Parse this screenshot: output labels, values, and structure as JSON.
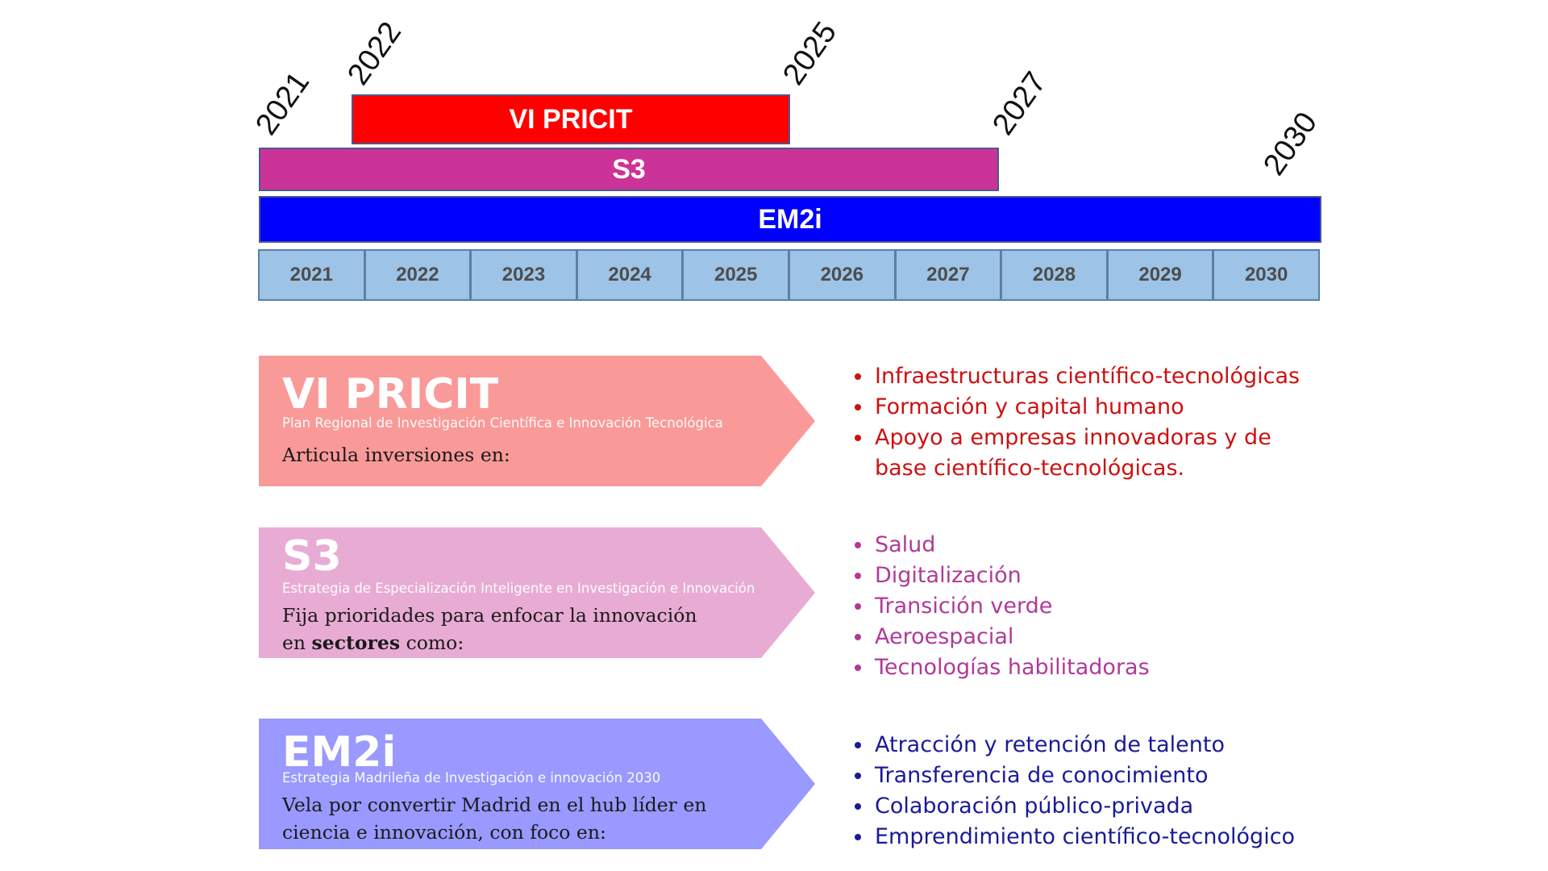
{
  "timeline": {
    "bars": {
      "pricit": "VI PRICIT",
      "s3": "S3",
      "em2i": "EM2i"
    },
    "tick_labels": {
      "start_2021": "2021",
      "start_2022": "2022",
      "end_2025": "2025",
      "end_2027": "2027",
      "end_2030": "2030"
    },
    "years": [
      "2021",
      "2022",
      "2023",
      "2024",
      "2025",
      "2026",
      "2027",
      "2028",
      "2029",
      "2030"
    ]
  },
  "blocks": {
    "pricit": {
      "title": "VI PRICIT",
      "subtitle": "Plan Regional de Investigación Científica e Innovación Tecnológica",
      "desc_line1": "Articula inversiones en:",
      "items": [
        "Infraestructuras científico-tecnológicas",
        "Formación y capital humano",
        "Apoyo a empresas innovadoras y de",
        "base científico-tecnológicas."
      ]
    },
    "s3": {
      "title": "S3",
      "subtitle": "Estrategia de Especialización Inteligente en Investigación e Innovación",
      "desc_line1": "Fija prioridades para enfocar la innovación",
      "desc_line2_pre": "en ",
      "desc_line2_bold": "sectores",
      "desc_line2_post": " como:",
      "items": [
        "Salud",
        "Digitalización",
        "Transición verde",
        "Aeroespacial",
        "Tecnologías habilitadoras"
      ]
    },
    "em2i": {
      "title": "EM2i",
      "subtitle": "Estrategia Madrileña de Investigación e innovación 2030",
      "desc_line1": "Vela por convertir Madrid en el hub líder en",
      "desc_line2": "ciencia e innovación, con foco en:",
      "items": [
        "Atracción y retención de talento",
        "Transferencia de conocimiento",
        "Colaboración público-privada",
        "Emprendimiento científico-tecnológico"
      ]
    }
  },
  "colors": {
    "pricit_bar": "#ff0000",
    "s3_bar": "#cc3399",
    "em2i_bar": "#0000ff",
    "pricit_arrow": "#f99a99",
    "s3_arrow": "#e8acd4",
    "em2i_arrow": "#9999ff",
    "pricit_text": "#cc1111",
    "s3_text": "#b03a98",
    "em2i_text": "#1a1a99",
    "year_cell": "#9dc3e6"
  }
}
